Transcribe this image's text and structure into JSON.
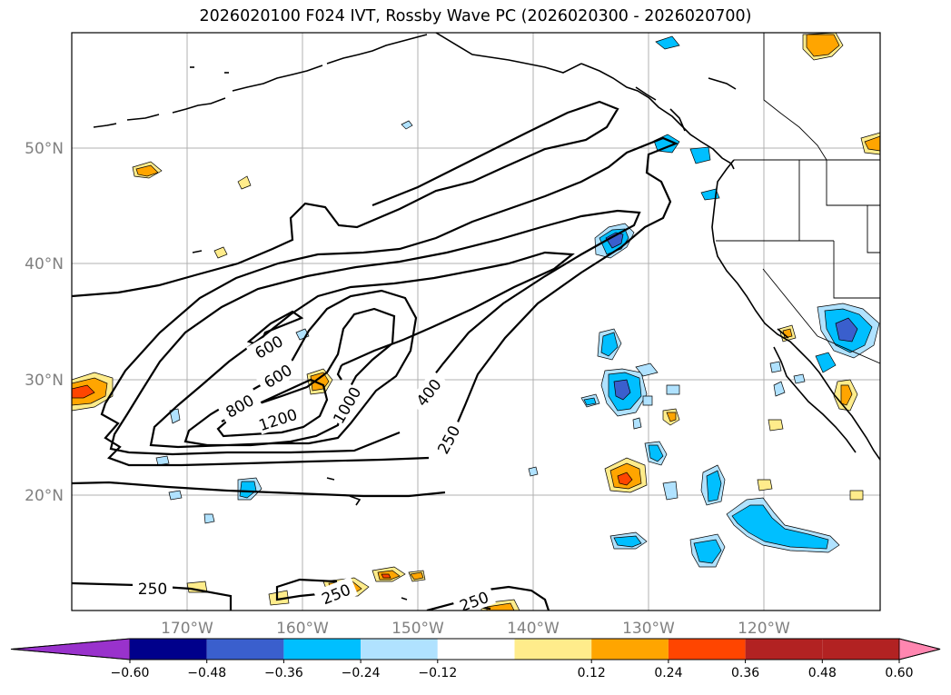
{
  "title": "2026020100 F024 IVT, Rossby Wave PC (2026020300 - 2026020700)",
  "latitude_labels": [
    "50°N",
    "40°N",
    "30°N",
    "20°N"
  ],
  "longitude_labels": [
    "170°W",
    "160°W",
    "150°W",
    "140°W",
    "130°W",
    "120°W"
  ],
  "contour_labels": [
    "600",
    "600",
    "800",
    "1200",
    "1000",
    "400",
    "250",
    "250",
    "250",
    "250"
  ],
  "colorbar": {
    "ticks": [
      "−0.60",
      "−0.48",
      "−0.36",
      "−0.24",
      "−0.12",
      "0.12",
      "0.24",
      "0.36",
      "0.48",
      "0.60"
    ],
    "colors": [
      "#9932cc",
      "#00008b",
      "#3a5fcd",
      "#00bfff",
      "#b0e2ff",
      "#ffffff",
      "#ffec8b",
      "#ffa500",
      "#ff4500",
      "#b22222",
      "#ff86b0"
    ]
  },
  "shading_colors": {
    "neg1": "#b0e2ff",
    "neg2": "#00bfff",
    "neg3": "#3a5fcd",
    "pos1": "#ffec8b",
    "pos2": "#ffa500",
    "pos3": "#ff4500"
  }
}
